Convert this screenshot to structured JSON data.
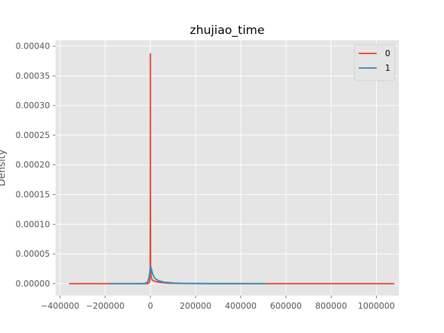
{
  "chart_data": {
    "type": "line",
    "title": "zhujiao_time",
    "xlabel": "",
    "ylabel": "Density",
    "xlim": [
      -420000,
      1100000
    ],
    "ylim": [
      -2e-05,
      0.00041
    ],
    "xticks": [
      -400000,
      -200000,
      0,
      200000,
      400000,
      600000,
      800000,
      1000000
    ],
    "xtick_labels": [
      "−400000",
      "−200000",
      "0",
      "200000",
      "400000",
      "600000",
      "800000",
      "1000000"
    ],
    "yticks": [
      0.0,
      5e-05,
      0.0001,
      0.00015,
      0.0002,
      0.00025,
      0.0003,
      0.00035,
      0.0004
    ],
    "ytick_labels": [
      "0.00000",
      "0.00005",
      "0.00010",
      "0.00015",
      "0.00020",
      "0.00025",
      "0.00030",
      "0.00035",
      "0.00040"
    ],
    "grid": true,
    "legend_position": "top-right",
    "series": [
      {
        "name": "0",
        "color": "#E24A33",
        "points": [
          [
            -360000,
            0.0
          ],
          [
            -100000,
            0.0
          ],
          [
            -20000,
            0.0
          ],
          [
            -8000,
            5e-07
          ],
          [
            -3000,
            3e-06
          ],
          [
            -1000,
            2e-05
          ],
          [
            -300,
            0.00015
          ],
          [
            0,
            0.000387
          ],
          [
            300,
            0.00015
          ],
          [
            1000,
            3e-05
          ],
          [
            3000,
            1.2e-05
          ],
          [
            8000,
            6e-06
          ],
          [
            20000,
            4e-06
          ],
          [
            40000,
            2e-06
          ],
          [
            80000,
            8e-07
          ],
          [
            150000,
            3e-07
          ],
          [
            300000,
            0.0
          ],
          [
            1080000,
            0.0
          ]
        ]
      },
      {
        "name": "1",
        "color": "#348ABD",
        "points": [
          [
            -180000,
            0.0
          ],
          [
            -60000,
            0.0
          ],
          [
            -25000,
            3e-07
          ],
          [
            -12000,
            3e-06
          ],
          [
            -5000,
            1.2e-05
          ],
          [
            -1500,
            2.4e-05
          ],
          [
            0,
            2.7e-05
          ],
          [
            2000,
            2.8e-05
          ],
          [
            5000,
            2.4e-05
          ],
          [
            10000,
            1.6e-05
          ],
          [
            20000,
            9e-06
          ],
          [
            35000,
            5e-06
          ],
          [
            60000,
            2.5e-06
          ],
          [
            100000,
            1.2e-06
          ],
          [
            150000,
            5e-07
          ],
          [
            250000,
            1e-07
          ],
          [
            510000,
            0.0
          ]
        ]
      }
    ]
  }
}
